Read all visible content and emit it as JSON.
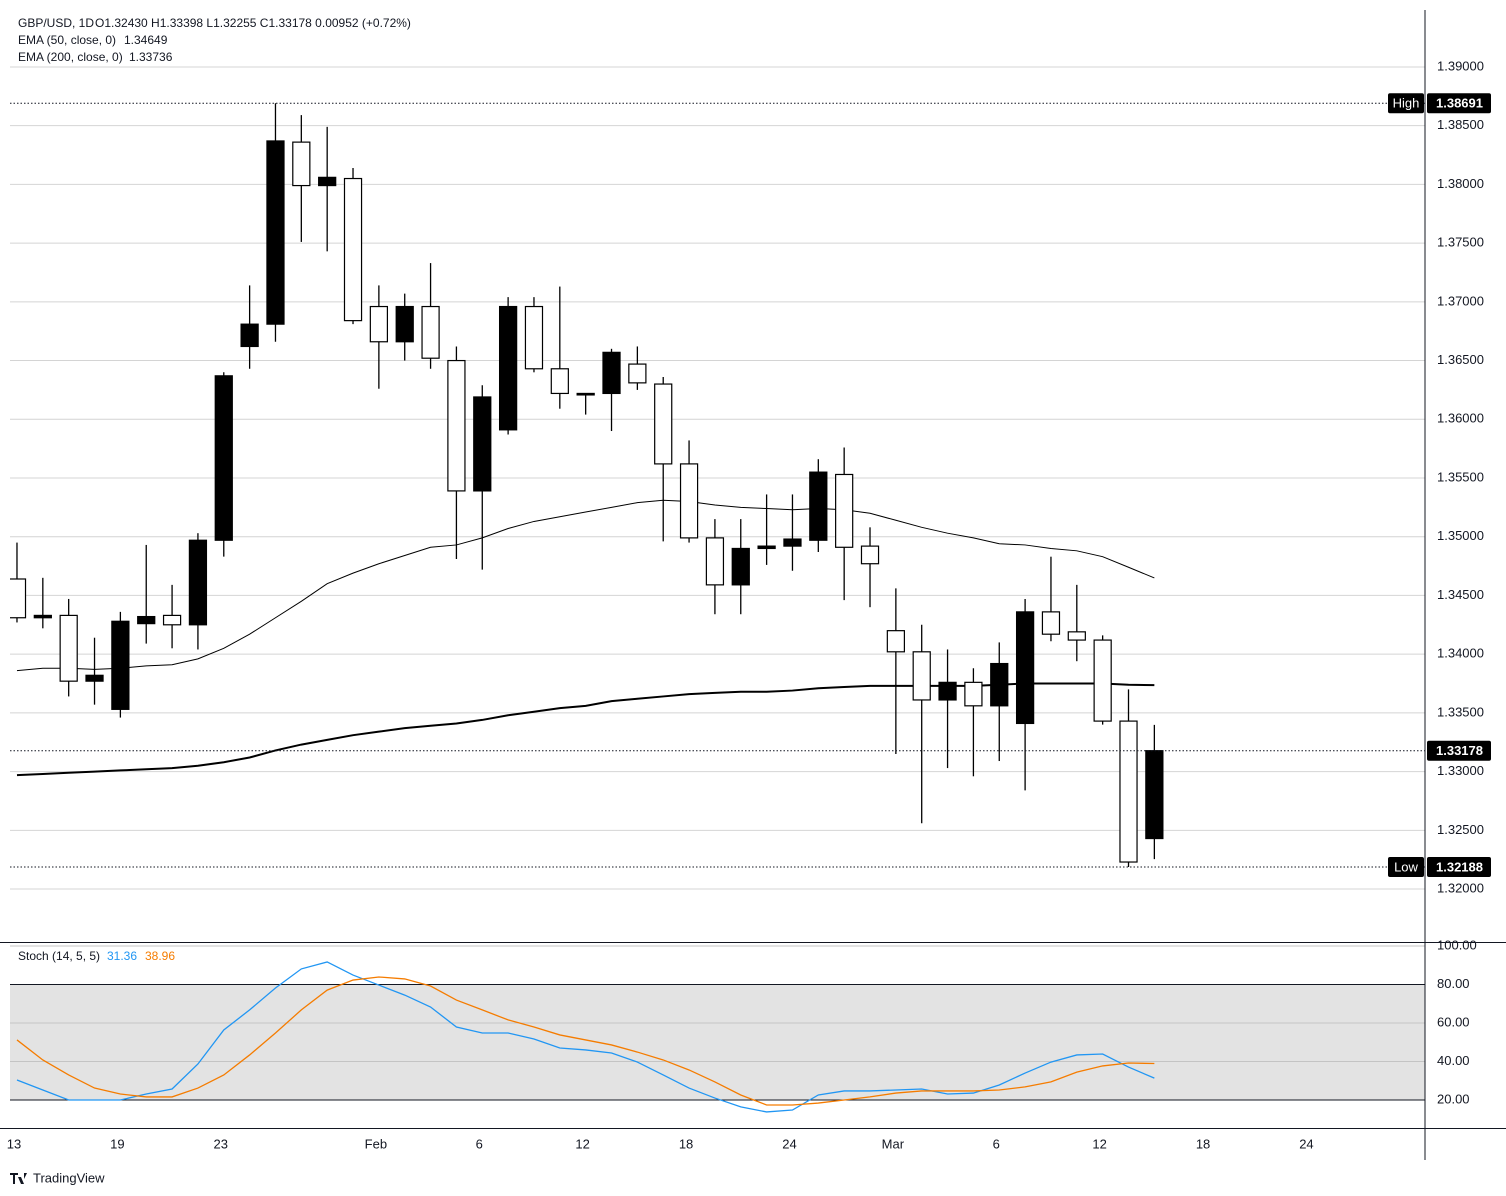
{
  "chart_data": [
    {
      "type": "candlestick",
      "title": "GBP/USD, 1D",
      "legend_text": "O1.32430 H1.33398 L1.32255 C1.33178 0.00952 (+0.72%)",
      "high_label": "High",
      "low_label": "Low",
      "xlim": [
        -0.27,
        54.47
      ],
      "ylim": [
        1.31549,
        1.39485
      ],
      "yticks": [
        {
          "value": 1.39,
          "label": "1.39000"
        },
        {
          "value": 1.385,
          "label": "1.38500"
        },
        {
          "value": 1.38,
          "label": "1.38000"
        },
        {
          "value": 1.375,
          "label": "1.37500"
        },
        {
          "value": 1.37,
          "label": "1.37000"
        },
        {
          "value": 1.365,
          "label": "1.36500"
        },
        {
          "value": 1.36,
          "label": "1.36000"
        },
        {
          "value": 1.355,
          "label": "1.35500"
        },
        {
          "value": 1.35,
          "label": "1.35000"
        },
        {
          "value": 1.345,
          "label": "1.34500"
        },
        {
          "value": 1.34,
          "label": "1.34000"
        },
        {
          "value": 1.335,
          "label": "1.33500"
        },
        {
          "value": 1.33,
          "label": "1.33000"
        },
        {
          "value": 1.325,
          "label": "1.32500"
        },
        {
          "value": 1.32,
          "label": "1.32000"
        }
      ],
      "grid": true,
      "up_color": "#000000",
      "down_color": "#ffffff",
      "candles": {
        "open": [
          1.3464,
          1.3431,
          1.3433,
          1.3377,
          1.3353,
          1.3426,
          1.3433,
          1.3425,
          1.3497,
          1.3662,
          1.3681,
          1.3836,
          1.3799,
          1.3805,
          1.3696,
          1.3666,
          1.3696,
          1.365,
          1.3539,
          1.3591,
          1.3696,
          1.3643,
          1.3621,
          1.3622,
          1.3647,
          1.363,
          1.3562,
          1.3499,
          1.3459,
          1.349,
          1.3492,
          1.3497,
          1.3553,
          1.3492,
          1.342,
          1.3402,
          1.3361,
          1.3376,
          1.3356,
          1.3341,
          1.3436,
          1.3419,
          1.3412,
          1.3343,
          1.3243
        ],
        "high": [
          1.3495,
          1.3465,
          1.3447,
          1.3414,
          1.3436,
          1.3493,
          1.3459,
          1.3503,
          1.364,
          1.3714,
          1.38691,
          1.3859,
          1.3849,
          1.3814,
          1.3714,
          1.3707,
          1.3733,
          1.3662,
          1.3629,
          1.3704,
          1.3704,
          1.3713,
          1.3622,
          1.366,
          1.3662,
          1.3636,
          1.3582,
          1.3515,
          1.3515,
          1.3536,
          1.3536,
          1.3566,
          1.3576,
          1.3508,
          1.3456,
          1.3425,
          1.3404,
          1.3388,
          1.341,
          1.3447,
          1.3483,
          1.3459,
          1.3416,
          1.337,
          1.33398
        ],
        "low": [
          1.3427,
          1.3422,
          1.3364,
          1.3357,
          1.3346,
          1.3409,
          1.3405,
          1.3404,
          1.3483,
          1.3643,
          1.3666,
          1.3751,
          1.3743,
          1.3681,
          1.3626,
          1.365,
          1.3643,
          1.3481,
          1.3472,
          1.3587,
          1.364,
          1.3609,
          1.3604,
          1.359,
          1.3625,
          1.3496,
          1.3495,
          1.3434,
          1.3434,
          1.3476,
          1.3471,
          1.3487,
          1.3446,
          1.344,
          1.3315,
          1.3256,
          1.3303,
          1.3296,
          1.3309,
          1.3284,
          1.3411,
          1.3394,
          1.334,
          1.32188,
          1.32255
        ],
        "close": [
          1.3431,
          1.3433,
          1.3377,
          1.3382,
          1.3428,
          1.3432,
          1.3425,
          1.3497,
          1.3637,
          1.3681,
          1.3837,
          1.3799,
          1.3806,
          1.3684,
          1.3666,
          1.3696,
          1.3652,
          1.3539,
          1.3619,
          1.3696,
          1.3643,
          1.3622,
          1.3622,
          1.3657,
          1.3631,
          1.3562,
          1.3499,
          1.3459,
          1.349,
          1.3492,
          1.3498,
          1.3555,
          1.3491,
          1.3477,
          1.3402,
          1.3361,
          1.3376,
          1.3356,
          1.3392,
          1.3436,
          1.3417,
          1.3412,
          1.3343,
          1.3223,
          1.33178
        ]
      },
      "series": [
        {
          "name": "EMA (50, close, 0)",
          "color": "#000000",
          "width": 1,
          "values": [
            1.3386,
            1.3388,
            1.3388,
            1.3387,
            1.3388,
            1.339,
            1.3391,
            1.3396,
            1.3405,
            1.3417,
            1.3431,
            1.3445,
            1.346,
            1.3469,
            1.3477,
            1.3484,
            1.3491,
            1.3493,
            1.3499,
            1.3507,
            1.3513,
            1.3517,
            1.3521,
            1.3525,
            1.3529,
            1.3531,
            1.353,
            1.3527,
            1.3525,
            1.3524,
            1.3523,
            1.3524,
            1.3523,
            1.352,
            1.3514,
            1.3508,
            1.3503,
            1.3499,
            1.3494,
            1.3493,
            1.349,
            1.3488,
            1.3483,
            1.3474,
            1.34649
          ]
        },
        {
          "name": "EMA (200, close, 0)",
          "color": "#000000",
          "width": 2,
          "values": [
            1.3297,
            1.3298,
            1.3299,
            1.33,
            1.3301,
            1.3302,
            1.3303,
            1.3305,
            1.3308,
            1.3312,
            1.3318,
            1.3323,
            1.3327,
            1.3331,
            1.3334,
            1.3337,
            1.3339,
            1.3341,
            1.3344,
            1.3348,
            1.3351,
            1.3354,
            1.3356,
            1.336,
            1.3362,
            1.3364,
            1.3366,
            1.3367,
            1.3368,
            1.3368,
            1.3369,
            1.3371,
            1.3372,
            1.3373,
            1.3373,
            1.3373,
            1.3373,
            1.3373,
            1.3374,
            1.3375,
            1.3375,
            1.3375,
            1.3375,
            1.3374,
            1.33736
          ]
        }
      ]
    },
    {
      "type": "line",
      "title": "Stoch (14, 5, 5)",
      "xlim": [
        -0.27,
        54.47
      ],
      "xticks": [
        {
          "value": 0,
          "label": "13"
        },
        {
          "value": 4,
          "label": "19"
        },
        {
          "value": 8,
          "label": "23"
        },
        {
          "value": 14,
          "label": "Feb"
        },
        {
          "value": 18,
          "label": "6"
        },
        {
          "value": 22,
          "label": "12"
        },
        {
          "value": 26,
          "label": "18"
        },
        {
          "value": 30,
          "label": "24"
        },
        {
          "value": 34,
          "label": "Mar"
        },
        {
          "value": 38,
          "label": "6"
        },
        {
          "value": 42,
          "label": "12"
        },
        {
          "value": 46,
          "label": "18"
        },
        {
          "value": 50,
          "label": "24"
        }
      ],
      "ylim": [
        5.45,
        101.56
      ],
      "yticks": [
        {
          "value": 100,
          "label": "100.00"
        },
        {
          "value": 80,
          "label": "80.00"
        },
        {
          "value": 60,
          "label": "60.00"
        },
        {
          "value": 40,
          "label": "40.00"
        },
        {
          "value": 20,
          "label": "20.00"
        }
      ],
      "band": [
        20,
        80
      ],
      "series": [
        {
          "color": "#2196f3",
          "values": [
            30.4,
            25.2,
            20.0,
            20.0,
            20.0,
            23.1,
            25.7,
            38.7,
            56.4,
            66.8,
            78.2,
            88.1,
            91.7,
            84.9,
            79.7,
            74.5,
            68.3,
            57.9,
            54.8,
            54.8,
            51.7,
            47.0,
            46.0,
            44.4,
            39.7,
            33.0,
            26.2,
            21.0,
            16.4,
            13.8,
            14.8,
            22.6,
            24.7,
            24.7,
            25.2,
            25.7,
            23.1,
            23.6,
            27.8,
            34.0,
            39.7,
            43.4,
            43.9,
            37.1,
            31.36
          ]
        },
        {
          "color": "#f57c00",
          "values": [
            51.2,
            40.8,
            33.0,
            26.2,
            23.1,
            21.6,
            21.6,
            26.2,
            33.0,
            43.4,
            54.8,
            66.8,
            77.1,
            82.3,
            83.9,
            82.9,
            79.2,
            71.9,
            66.8,
            61.6,
            57.9,
            53.8,
            51.2,
            48.6,
            44.9,
            40.8,
            35.6,
            29.4,
            22.6,
            17.4,
            17.4,
            18.4,
            20.0,
            21.6,
            23.6,
            24.7,
            24.7,
            24.7,
            25.2,
            26.8,
            29.4,
            34.5,
            37.7,
            39.2,
            38.96
          ]
        }
      ]
    }
  ],
  "footer": {
    "brand": "TradingView"
  }
}
